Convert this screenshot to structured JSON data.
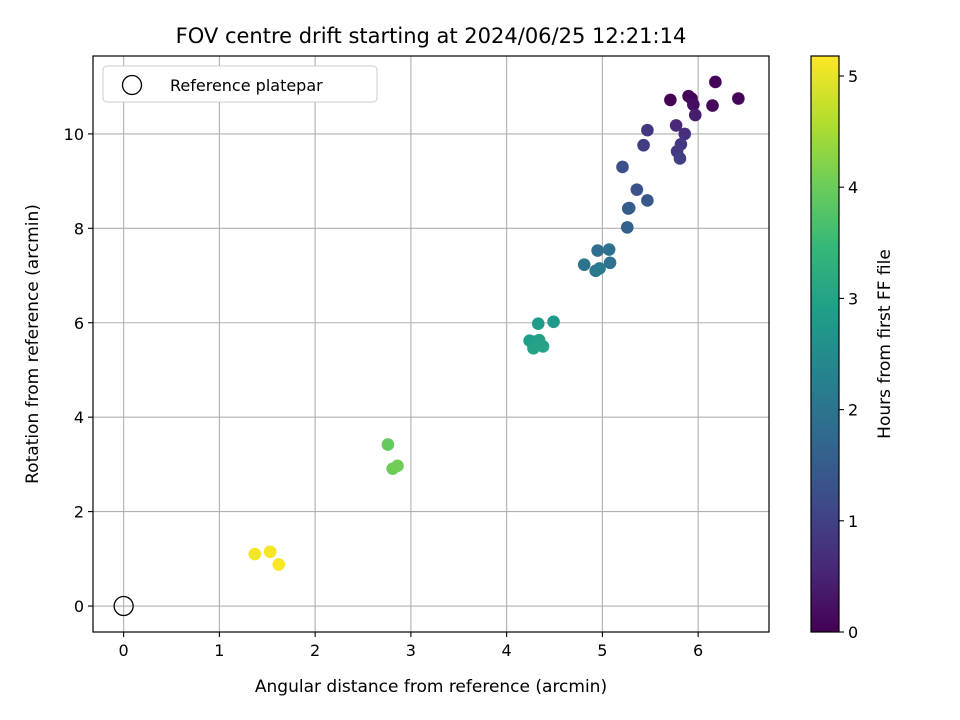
{
  "chart_data": {
    "type": "scatter",
    "title": "FOV centre drift starting at 2024/06/25 12:21:14",
    "xlabel": "Angular distance from reference (arcmin)",
    "ylabel": "Rotation from reference (arcmin)",
    "xlim": [
      -0.32,
      6.74
    ],
    "ylim": [
      -0.55,
      11.65
    ],
    "xticks": [
      0,
      1,
      2,
      3,
      4,
      5,
      6
    ],
    "yticks": [
      0,
      2,
      4,
      6,
      8,
      10
    ],
    "grid": true,
    "legend": {
      "placement": "upper-left",
      "entries": [
        "Reference platepar"
      ]
    },
    "reference": {
      "name": "Reference platepar",
      "x": 0,
      "y": 0,
      "marker": "open-circle"
    },
    "colorbar": {
      "label": "Hours from first FF file",
      "colormap": "viridis",
      "range": [
        0,
        5.18
      ],
      "ticks": [
        0,
        1,
        2,
        3,
        4,
        5
      ]
    },
    "points": [
      {
        "x": 5.71,
        "y": 10.72,
        "hours": 0.02
      },
      {
        "x": 5.9,
        "y": 10.8,
        "hours": 0.03
      },
      {
        "x": 5.93,
        "y": 10.75,
        "hours": 0.05
      },
      {
        "x": 6.18,
        "y": 11.1,
        "hours": 0.07
      },
      {
        "x": 6.42,
        "y": 10.75,
        "hours": 0.08
      },
      {
        "x": 6.15,
        "y": 10.6,
        "hours": 0.1
      },
      {
        "x": 5.95,
        "y": 10.62,
        "hours": 0.18
      },
      {
        "x": 5.97,
        "y": 10.4,
        "hours": 0.42
      },
      {
        "x": 5.77,
        "y": 10.18,
        "hours": 0.6
      },
      {
        "x": 5.86,
        "y": 10.0,
        "hours": 0.7
      },
      {
        "x": 5.82,
        "y": 9.78,
        "hours": 0.85
      },
      {
        "x": 5.78,
        "y": 9.63,
        "hours": 0.9
      },
      {
        "x": 5.81,
        "y": 9.48,
        "hours": 0.95
      },
      {
        "x": 5.47,
        "y": 10.08,
        "hours": 0.85
      },
      {
        "x": 5.43,
        "y": 9.76,
        "hours": 0.95
      },
      {
        "x": 5.21,
        "y": 9.3,
        "hours": 1.25
      },
      {
        "x": 5.36,
        "y": 8.82,
        "hours": 1.35
      },
      {
        "x": 5.47,
        "y": 8.59,
        "hours": 1.4
      },
      {
        "x": 5.27,
        "y": 8.42,
        "hours": 1.45
      },
      {
        "x": 5.28,
        "y": 8.43,
        "hours": 1.5
      },
      {
        "x": 5.26,
        "y": 8.02,
        "hours": 1.6
      },
      {
        "x": 4.95,
        "y": 7.53,
        "hours": 1.85
      },
      {
        "x": 5.07,
        "y": 7.55,
        "hours": 1.9
      },
      {
        "x": 5.08,
        "y": 7.27,
        "hours": 1.95
      },
      {
        "x": 4.81,
        "y": 7.23,
        "hours": 2.0
      },
      {
        "x": 4.93,
        "y": 7.1,
        "hours": 2.05
      },
      {
        "x": 4.97,
        "y": 7.15,
        "hours": 2.1
      },
      {
        "x": 4.49,
        "y": 6.02,
        "hours": 2.8
      },
      {
        "x": 4.33,
        "y": 5.98,
        "hours": 2.85
      },
      {
        "x": 4.24,
        "y": 5.62,
        "hours": 2.9
      },
      {
        "x": 4.3,
        "y": 5.6,
        "hours": 2.9
      },
      {
        "x": 4.34,
        "y": 5.63,
        "hours": 2.95
      },
      {
        "x": 4.28,
        "y": 5.46,
        "hours": 3.0
      },
      {
        "x": 4.38,
        "y": 5.5,
        "hours": 3.0
      },
      {
        "x": 2.76,
        "y": 3.42,
        "hours": 3.95
      },
      {
        "x": 2.81,
        "y": 2.91,
        "hours": 4.0
      },
      {
        "x": 2.86,
        "y": 2.97,
        "hours": 4.05
      },
      {
        "x": 1.37,
        "y": 1.1,
        "hours": 5.1
      },
      {
        "x": 1.53,
        "y": 1.15,
        "hours": 5.12
      },
      {
        "x": 1.62,
        "y": 0.88,
        "hours": 5.15
      }
    ]
  }
}
